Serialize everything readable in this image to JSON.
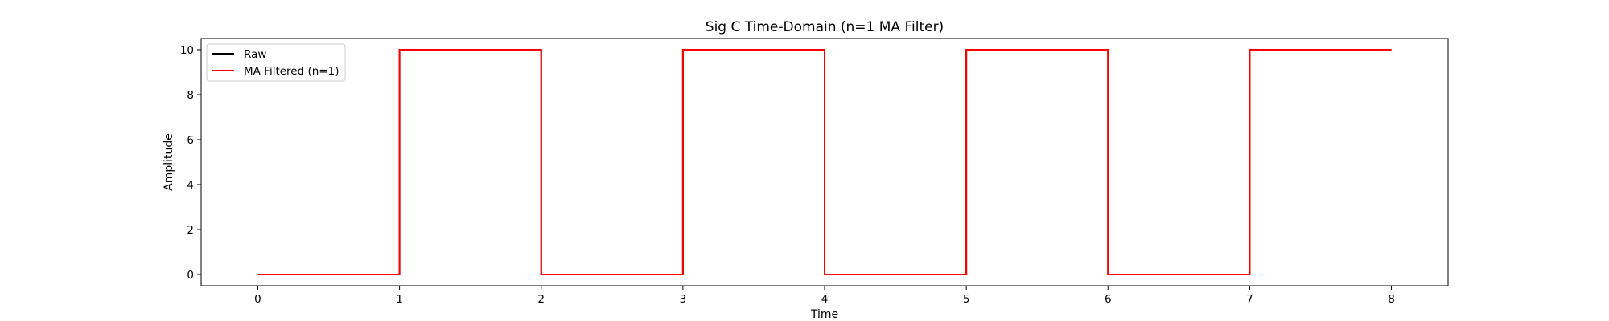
{
  "chart_data": {
    "type": "line",
    "title": "Sig C Time-Domain (n=1 MA Filter)",
    "xlabel": "Time",
    "ylabel": "Amplitude",
    "xlim": [
      -0.4,
      8.4
    ],
    "ylim": [
      -0.5,
      10.5
    ],
    "xticks": [
      0,
      1,
      2,
      3,
      4,
      5,
      6,
      7,
      8
    ],
    "yticks": [
      0,
      2,
      4,
      6,
      8,
      10
    ],
    "grid": false,
    "legend_position": "top-left",
    "series": [
      {
        "name": "Raw",
        "color": "#000000",
        "x": [
          0,
          1,
          1,
          2,
          2,
          3,
          3,
          4,
          4,
          5,
          5,
          6,
          6,
          7,
          7,
          8
        ],
        "y": [
          0,
          0,
          10,
          10,
          0,
          0,
          10,
          10,
          0,
          0,
          10,
          10,
          0,
          0,
          10,
          10
        ]
      },
      {
        "name": "MA Filtered (n=1)",
        "color": "#ff0000",
        "x": [
          0,
          1,
          1,
          2,
          2,
          3,
          3,
          4,
          4,
          5,
          5,
          6,
          6,
          7,
          7,
          8
        ],
        "y": [
          0,
          0,
          10,
          10,
          0,
          0,
          10,
          10,
          0,
          0,
          10,
          10,
          0,
          0,
          10,
          10
        ]
      }
    ]
  }
}
